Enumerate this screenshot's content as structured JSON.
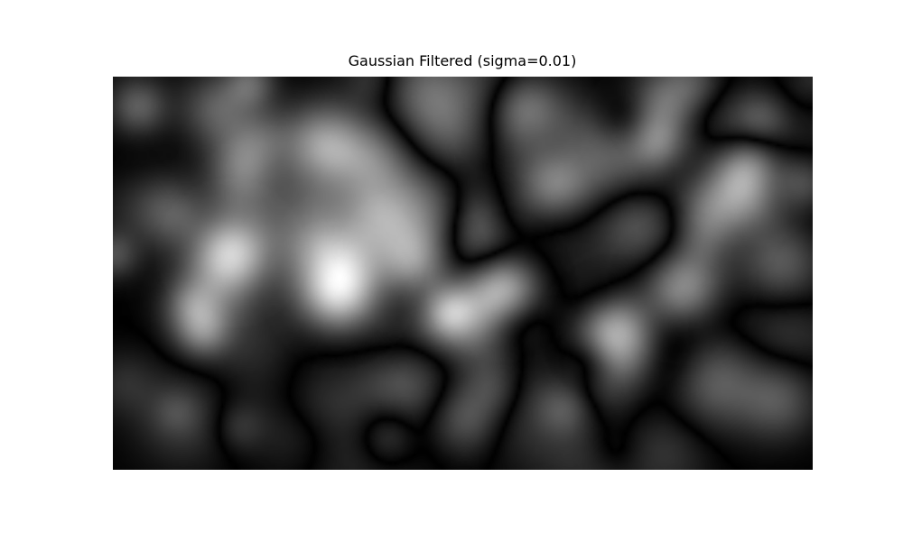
{
  "figure": {
    "title": "Gaussian Filtered (sigma=0.01)"
  },
  "image": {
    "colormap": "gray",
    "background_color": "#ffffff",
    "axes_visible": false
  }
}
